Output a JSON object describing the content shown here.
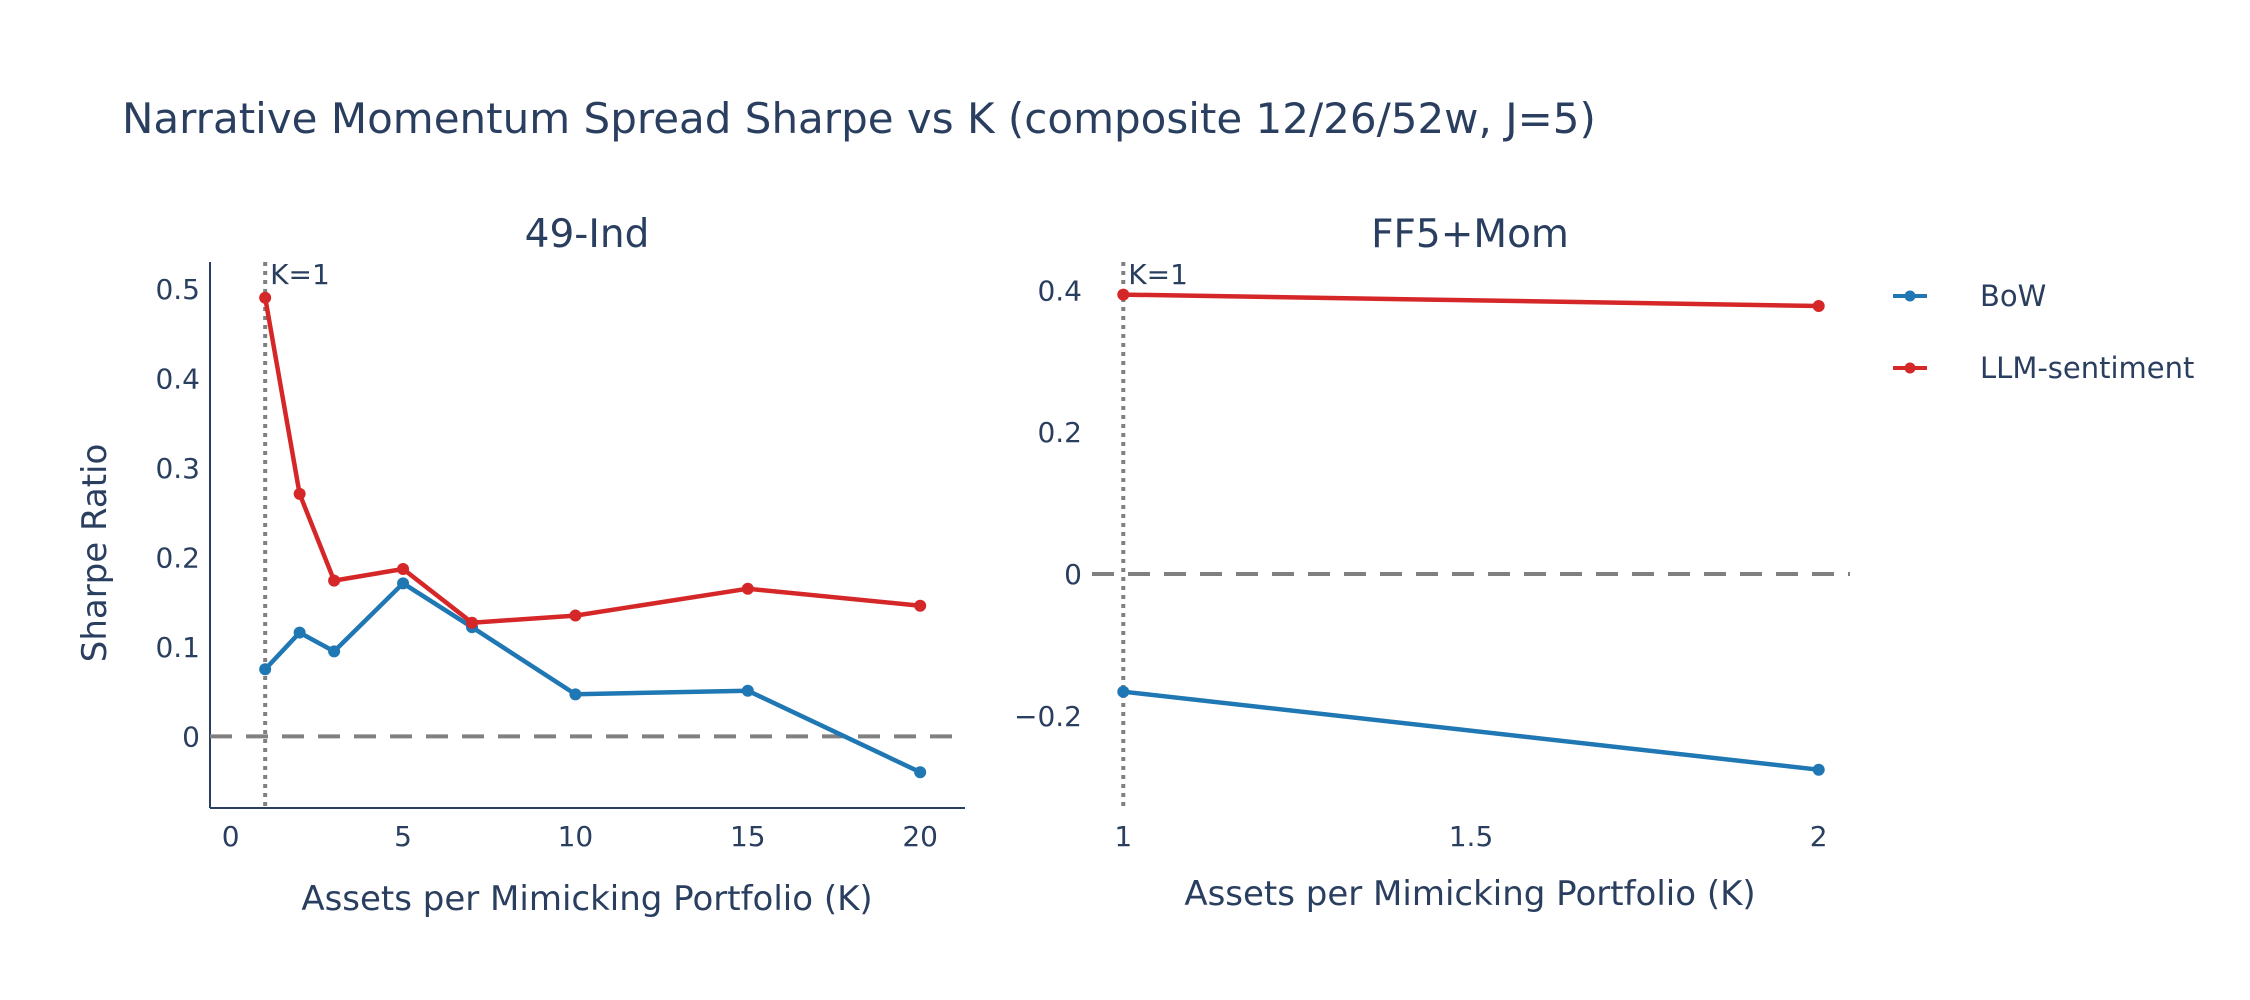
{
  "chart_data": {
    "title": "Narrative Momentum Spread Sharpe vs K (composite 12/26/52w, J=5)",
    "type": "line",
    "legend": {
      "placement": "right",
      "entries": [
        {
          "name": "BoW",
          "color": "#1f77b4"
        },
        {
          "name": "LLM-sentiment",
          "color": "#d62728"
        }
      ]
    },
    "panels": [
      {
        "subtitle": "49-Ind",
        "xlabel": "Assets per Mimicking Portfolio (K)",
        "ylabel": "Sharpe Ratio",
        "xlim": [
          -0.6,
          21.3
        ],
        "ylim": [
          -0.08,
          0.53
        ],
        "xticks": [
          0,
          5,
          10,
          15,
          20
        ],
        "yticks": [
          0,
          0.1,
          0.2,
          0.3,
          0.4,
          0.5
        ],
        "ytick_labels": [
          "0",
          "0.1",
          "0.2",
          "0.3",
          "0.4",
          "0.5"
        ],
        "show_axis_lines": true,
        "zero_line": true,
        "vline": {
          "x": 1,
          "label": "K=1"
        },
        "series": [
          {
            "name": "BoW",
            "color": "#1f77b4",
            "x": [
              1,
              2,
              3,
              5,
              7,
              10,
              15,
              20
            ],
            "y": [
              0.075,
              0.116,
              0.095,
              0.171,
              0.122,
              0.047,
              0.051,
              -0.04
            ]
          },
          {
            "name": "LLM-sentiment",
            "color": "#d62728",
            "x": [
              1,
              2,
              3,
              5,
              7,
              10,
              15,
              20
            ],
            "y": [
              0.49,
              0.271,
              0.174,
              0.187,
              0.127,
              0.135,
              0.165,
              0.146
            ]
          }
        ]
      },
      {
        "subtitle": "FF5+Mom",
        "xlabel": "Assets per Mimicking Portfolio (K)",
        "ylabel": "",
        "xlim": [
          0.955,
          2.045
        ],
        "ylim": [
          -0.33,
          0.44
        ],
        "xticks": [
          1,
          1.5,
          2
        ],
        "yticks": [
          -0.2,
          0,
          0.2,
          0.4
        ],
        "ytick_labels": [
          "−0.2",
          "0",
          "0.2",
          "0.4"
        ],
        "show_axis_lines": false,
        "zero_line": true,
        "vline": {
          "x": 1,
          "label": "K=1"
        },
        "series": [
          {
            "name": "BoW",
            "color": "#1f77b4",
            "x": [
              1,
              2
            ],
            "y": [
              -0.166,
              -0.276
            ]
          },
          {
            "name": "LLM-sentiment",
            "color": "#d62728",
            "x": [
              1,
              2
            ],
            "y": [
              0.394,
              0.378
            ]
          }
        ]
      }
    ]
  }
}
